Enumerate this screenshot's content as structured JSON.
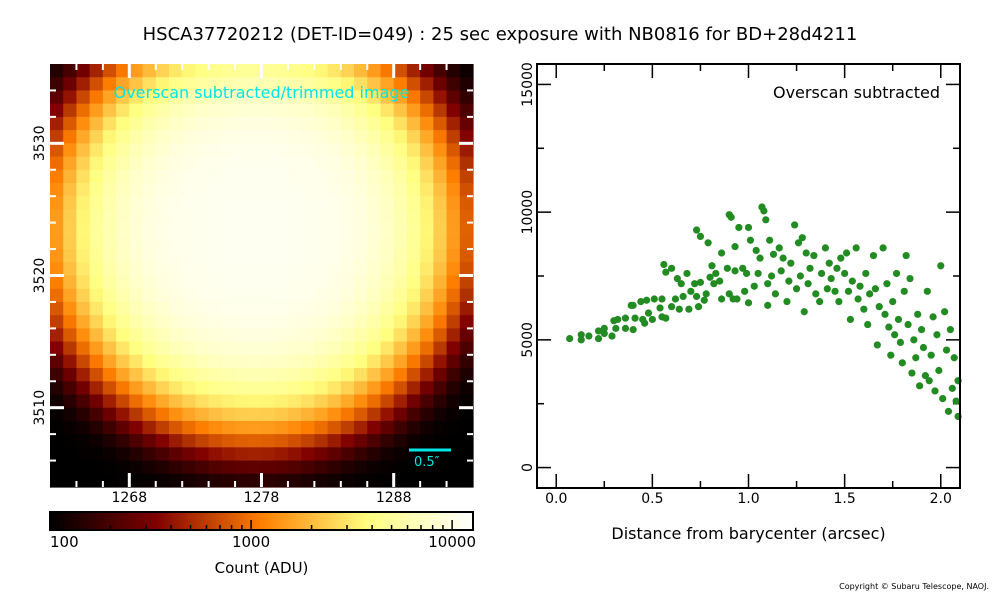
{
  "title": "HSCA37720212 (DET-ID=049) :  25 sec exposure with NB0816 for BD+28d4211",
  "copyright": "Copyright © Subaru Telescope, NAOJ.",
  "colors": {
    "scatter": "#228b22",
    "overlay_text": "#00e5e5"
  },
  "chart_data": [
    {
      "type": "heatmap",
      "label": "Overscan subtracted/trimmed image",
      "scale_bar_label": "0.5″",
      "xlim": [
        1262,
        1294
      ],
      "ylim": [
        3504,
        3536
      ],
      "xticks": [
        "1268",
        "1278",
        "1288"
      ],
      "xtick_values": [
        1268,
        1278,
        1288
      ],
      "yticks": [
        "3510",
        "3520",
        "3530"
      ],
      "ytick_values": [
        3510,
        3520,
        3530
      ],
      "model": {
        "center_x": 1277.5,
        "center_y": 3523.5,
        "peak": 11000,
        "background": 100,
        "radius": 12.5,
        "power": 4
      },
      "colorbar": {
        "scale": "log",
        "range": [
          100,
          12700
        ],
        "ticks": [
          "100",
          "1000",
          "10000"
        ],
        "tick_values": [
          100,
          1000,
          10000
        ],
        "label": "Count (ADU)",
        "colormap": "afmhot"
      }
    },
    {
      "type": "scatter",
      "label": "Overscan subtracted",
      "xlabel": "Distance from barycenter (arcsec)",
      "ylabel": "",
      "xlim": [
        -0.1,
        2.1
      ],
      "ylim": [
        -800,
        15800
      ],
      "xticks": [
        "0.0",
        "0.5",
        "1.0",
        "1.5",
        "2.0"
      ],
      "xtick_values": [
        0,
        0.5,
        1.0,
        1.5,
        2.0
      ],
      "yticks": [
        "0",
        "5000",
        "10000",
        "15000"
      ],
      "ytick_values": [
        0,
        5000,
        10000,
        15000
      ],
      "points": [
        [
          0.07,
          5050
        ],
        [
          0.13,
          5000
        ],
        [
          0.13,
          5200
        ],
        [
          0.17,
          5150
        ],
        [
          0.22,
          5050
        ],
        [
          0.22,
          5350
        ],
        [
          0.25,
          5250
        ],
        [
          0.25,
          5450
        ],
        [
          0.29,
          5150
        ],
        [
          0.3,
          5750
        ],
        [
          0.31,
          5450
        ],
        [
          0.32,
          5800
        ],
        [
          0.36,
          5450
        ],
        [
          0.36,
          5850
        ],
        [
          0.39,
          6350
        ],
        [
          0.4,
          5400
        ],
        [
          0.4,
          6350
        ],
        [
          0.41,
          5850
        ],
        [
          0.44,
          6500
        ],
        [
          0.45,
          5800
        ],
        [
          0.46,
          5650
        ],
        [
          0.47,
          6550
        ],
        [
          0.48,
          6050
        ],
        [
          0.5,
          5800
        ],
        [
          0.51,
          6600
        ],
        [
          0.54,
          6250
        ],
        [
          0.55,
          5900
        ],
        [
          0.55,
          6600
        ],
        [
          0.56,
          7950
        ],
        [
          0.57,
          5850
        ],
        [
          0.57,
          7650
        ],
        [
          0.6,
          6300
        ],
        [
          0.6,
          7800
        ],
        [
          0.62,
          6600
        ],
        [
          0.63,
          7400
        ],
        [
          0.64,
          6200
        ],
        [
          0.65,
          7200
        ],
        [
          0.66,
          6700
        ],
        [
          0.68,
          7600
        ],
        [
          0.69,
          6200
        ],
        [
          0.7,
          6900
        ],
        [
          0.72,
          7200
        ],
        [
          0.73,
          9300
        ],
        [
          0.73,
          6700
        ],
        [
          0.74,
          6300
        ],
        [
          0.75,
          7250
        ],
        [
          0.75,
          9050
        ],
        [
          0.77,
          6550
        ],
        [
          0.78,
          6800
        ],
        [
          0.79,
          8800
        ],
        [
          0.8,
          7450
        ],
        [
          0.81,
          7900
        ],
        [
          0.82,
          7200
        ],
        [
          0.83,
          7600
        ],
        [
          0.85,
          7300
        ],
        [
          0.86,
          6600
        ],
        [
          0.86,
          8400
        ],
        [
          0.89,
          7800
        ],
        [
          0.9,
          6800
        ],
        [
          0.9,
          9900
        ],
        [
          0.91,
          9800
        ],
        [
          0.92,
          6600
        ],
        [
          0.93,
          8650
        ],
        [
          0.93,
          7700
        ],
        [
          0.94,
          6600
        ],
        [
          0.95,
          9400
        ],
        [
          0.97,
          7800
        ],
        [
          0.98,
          6900
        ],
        [
          0.99,
          7600
        ],
        [
          1.0,
          9400
        ],
        [
          1.0,
          6450
        ],
        [
          1.01,
          8900
        ],
        [
          1.03,
          7100
        ],
        [
          1.04,
          8500
        ],
        [
          1.05,
          7600
        ],
        [
          1.06,
          8200
        ],
        [
          1.07,
          10200
        ],
        [
          1.08,
          10050
        ],
        [
          1.09,
          9700
        ],
        [
          1.1,
          7200
        ],
        [
          1.1,
          6350
        ],
        [
          1.11,
          8900
        ],
        [
          1.12,
          7500
        ],
        [
          1.13,
          8350
        ],
        [
          1.14,
          6800
        ],
        [
          1.16,
          8600
        ],
        [
          1.17,
          7700
        ],
        [
          1.18,
          8200
        ],
        [
          1.2,
          6500
        ],
        [
          1.21,
          7300
        ],
        [
          1.22,
          8000
        ],
        [
          1.24,
          9500
        ],
        [
          1.25,
          7000
        ],
        [
          1.26,
          8800
        ],
        [
          1.27,
          7500
        ],
        [
          1.28,
          9000
        ],
        [
          1.29,
          6100
        ],
        [
          1.3,
          8400
        ],
        [
          1.31,
          7200
        ],
        [
          1.32,
          7800
        ],
        [
          1.34,
          8300
        ],
        [
          1.35,
          6800
        ],
        [
          1.37,
          6500
        ],
        [
          1.38,
          7600
        ],
        [
          1.4,
          8600
        ],
        [
          1.41,
          7000
        ],
        [
          1.42,
          8000
        ],
        [
          1.43,
          7400
        ],
        [
          1.45,
          6900
        ],
        [
          1.46,
          7800
        ],
        [
          1.47,
          6500
        ],
        [
          1.48,
          8200
        ],
        [
          1.5,
          7600
        ],
        [
          1.51,
          8400
        ],
        [
          1.52,
          6900
        ],
        [
          1.53,
          5800
        ],
        [
          1.54,
          7300
        ],
        [
          1.56,
          8600
        ],
        [
          1.57,
          6600
        ],
        [
          1.58,
          7100
        ],
        [
          1.6,
          6200
        ],
        [
          1.61,
          7600
        ],
        [
          1.62,
          5600
        ],
        [
          1.63,
          6800
        ],
        [
          1.65,
          8300
        ],
        [
          1.66,
          7000
        ],
        [
          1.67,
          4800
        ],
        [
          1.68,
          6300
        ],
        [
          1.7,
          8600
        ],
        [
          1.71,
          6000
        ],
        [
          1.72,
          7200
        ],
        [
          1.73,
          5500
        ],
        [
          1.74,
          4400
        ],
        [
          1.75,
          6500
        ],
        [
          1.76,
          5200
        ],
        [
          1.77,
          7600
        ],
        [
          1.78,
          5800
        ],
        [
          1.79,
          4900
        ],
        [
          1.8,
          4100
        ],
        [
          1.81,
          6900
        ],
        [
          1.82,
          8300
        ],
        [
          1.83,
          5600
        ],
        [
          1.84,
          7400
        ],
        [
          1.85,
          3700
        ],
        [
          1.86,
          5000
        ],
        [
          1.87,
          4300
        ],
        [
          1.88,
          6000
        ],
        [
          1.89,
          3200
        ],
        [
          1.9,
          5400
        ],
        [
          1.91,
          4700
        ],
        [
          1.92,
          3600
        ],
        [
          1.93,
          6900
        ],
        [
          1.94,
          3400
        ],
        [
          1.95,
          4400
        ],
        [
          1.96,
          5900
        ],
        [
          1.97,
          3000
        ],
        [
          1.98,
          5200
        ],
        [
          1.99,
          3800
        ],
        [
          2.0,
          7900
        ],
        [
          2.01,
          2700
        ],
        [
          2.02,
          6100
        ],
        [
          2.03,
          4600
        ],
        [
          2.04,
          2200
        ],
        [
          2.05,
          5400
        ],
        [
          2.06,
          3100
        ],
        [
          2.07,
          4300
        ],
        [
          2.08,
          2600
        ],
        [
          2.09,
          2000
        ],
        [
          2.09,
          3400
        ]
      ]
    }
  ]
}
